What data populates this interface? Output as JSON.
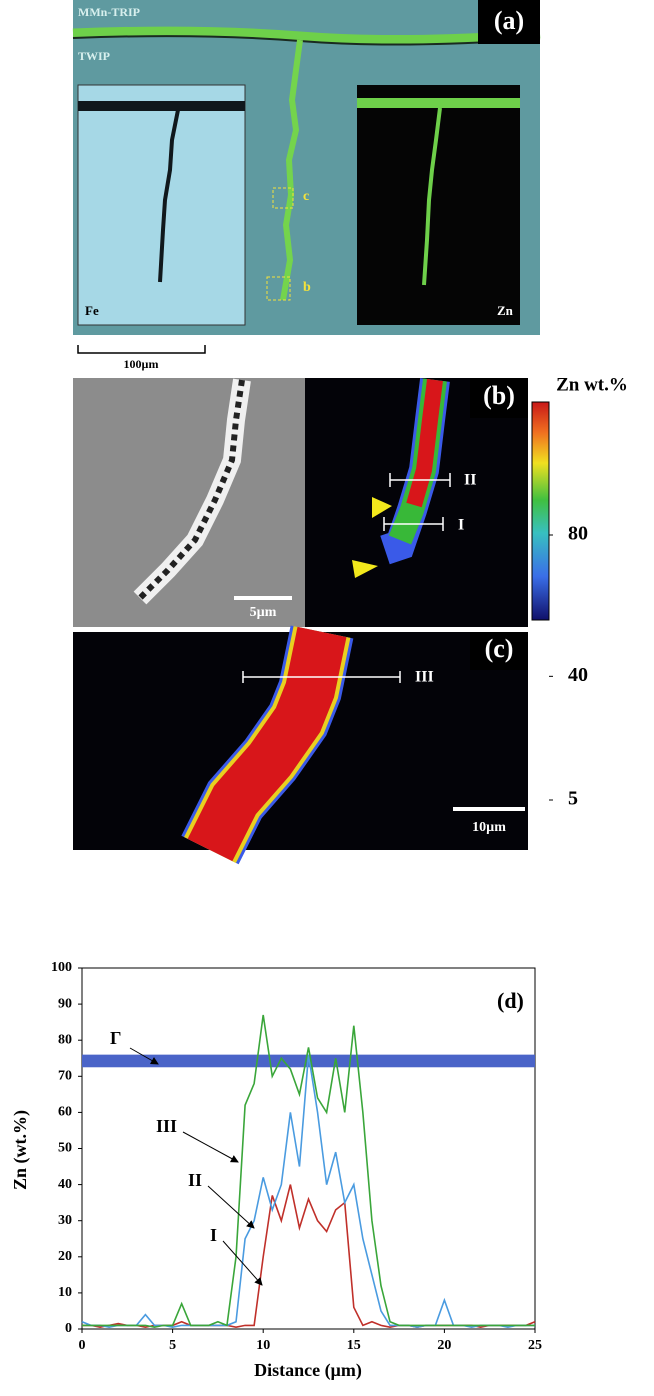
{
  "panels": {
    "a": {
      "label": "(a)",
      "top_layer": "MMn-TRIP",
      "bottom_layer": "TWIP",
      "box_labels": [
        "c",
        "b"
      ],
      "inset_labels": [
        "Fe",
        "Zn"
      ],
      "scale_bar": "100µm"
    },
    "b": {
      "label": "(b)",
      "line_labels": [
        "II",
        "I"
      ],
      "scale_bar": "5µm",
      "colorbar": {
        "title": "Zn wt.%",
        "lim": [
          5,
          80
        ],
        "ticks": [
          80,
          40,
          5
        ]
      }
    },
    "c": {
      "label": "(c)",
      "line_labels": [
        "III"
      ],
      "scale_bar": "10µm"
    }
  },
  "chart_data": {
    "type": "line",
    "panel_label": "(d)",
    "x_label": "Distance (µm)",
    "y_label": "Zn (wt.%)",
    "x": [
      0,
      0.5,
      1,
      1.5,
      2,
      2.5,
      3,
      3.5,
      4,
      4.5,
      5,
      5.5,
      6,
      6.5,
      7,
      7.5,
      8,
      8.5,
      9,
      9.5,
      10,
      10.5,
      11,
      11.5,
      12,
      12.5,
      13,
      13.5,
      14,
      14.5,
      15,
      15.5,
      16,
      16.5,
      17,
      17.5,
      18,
      18.5,
      19,
      19.5,
      20,
      20.5,
      21,
      21.5,
      22,
      22.5,
      23,
      23.5,
      24,
      24.5,
      25
    ],
    "series": [
      {
        "name": "I",
        "color": "#c0302a",
        "values": [
          1,
          1,
          0.5,
          1,
          1.5,
          1,
          1,
          0.5,
          1,
          1,
          1,
          2,
          1,
          1,
          1,
          1,
          1,
          0.5,
          1,
          1,
          20,
          37,
          30,
          40,
          28,
          36,
          30,
          27,
          33,
          35,
          6,
          1,
          2,
          1,
          0.5,
          1,
          1,
          0.5,
          1,
          1,
          1,
          1,
          1,
          1,
          0.5,
          1,
          1,
          1,
          1,
          1,
          2
        ]
      },
      {
        "name": "II",
        "color": "#4a9be0",
        "values": [
          2,
          1,
          1,
          0.5,
          1,
          1,
          1,
          4,
          1,
          1,
          0.5,
          1,
          1,
          1,
          1,
          1,
          1,
          2,
          25,
          30,
          42,
          33,
          40,
          60,
          45,
          76,
          60,
          40,
          49,
          35,
          40,
          25,
          15,
          5,
          1,
          1,
          1,
          0.5,
          1,
          1,
          8,
          1,
          1,
          0.5,
          1,
          1,
          1,
          0.5,
          1,
          1,
          1
        ]
      },
      {
        "name": "III",
        "color": "#3aa63a",
        "values": [
          1,
          1,
          1,
          1,
          1,
          1,
          1,
          1,
          0.5,
          1,
          1,
          7,
          1,
          1,
          1,
          2,
          1,
          20,
          62,
          68,
          87,
          70,
          75,
          72,
          65,
          78,
          64,
          60,
          75,
          60,
          84,
          60,
          30,
          12,
          2,
          1,
          1,
          1,
          1,
          1,
          1,
          1,
          1,
          1,
          1,
          1,
          1,
          1,
          1,
          1,
          1
        ]
      }
    ],
    "bands": [
      {
        "label": "Γ",
        "from": 72.5,
        "to": 76,
        "color": "#4a64c8"
      }
    ],
    "xlim": [
      0,
      25
    ],
    "xticks": [
      0,
      5,
      10,
      15,
      20,
      25
    ],
    "ylim": [
      0,
      100
    ],
    "yticks": [
      0,
      10,
      20,
      30,
      40,
      50,
      60,
      70,
      80,
      90,
      100
    ]
  }
}
